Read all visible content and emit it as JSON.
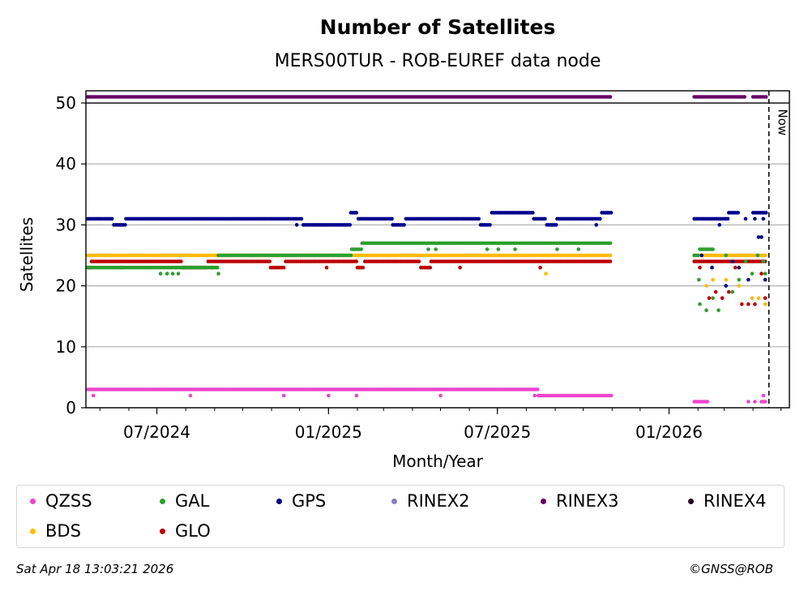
{
  "chart_data": {
    "type": "scatter",
    "title": "Number of Satellites",
    "subtitle": "MERS00TUR - ROB-EUREF data node",
    "xlabel": "Month/Year",
    "ylabel": "Satellites",
    "xlim": [
      "2024-04-16",
      "2026-05-10"
    ],
    "ylim": [
      0,
      52
    ],
    "yticks": [
      0,
      10,
      20,
      30,
      40,
      50
    ],
    "xticks": [
      {
        "date": "2024-07-01",
        "label": "07/2024"
      },
      {
        "date": "2025-01-01",
        "label": "01/2025"
      },
      {
        "date": "2025-07-01",
        "label": "07/2025"
      },
      {
        "date": "2026-01-01",
        "label": "01/2026"
      }
    ],
    "grid": "horizontal",
    "now_marker": {
      "date": "2026-04-18",
      "label": "Now"
    },
    "legend_placement": "bottom",
    "series": [
      {
        "name": "QZSS",
        "color": "#ee44cc",
        "segments": [
          {
            "start": "2024-04-18",
            "end": "2025-08-13",
            "value": 3
          },
          {
            "start": "2025-08-14",
            "end": "2025-10-31",
            "value": 2
          },
          {
            "start": "2026-01-28",
            "end": "2026-02-12",
            "value": 1
          },
          {
            "start": "2026-04-10",
            "end": "2026-04-15",
            "value": 1
          }
        ],
        "points": [
          [
            "2024-04-24",
            2
          ],
          [
            "2024-08-06",
            2
          ],
          [
            "2024-11-14",
            2
          ],
          [
            "2025-01-01",
            2
          ],
          [
            "2025-01-31",
            2
          ],
          [
            "2025-05-01",
            2
          ],
          [
            "2025-08-10",
            2
          ],
          [
            "2026-03-27",
            1
          ],
          [
            "2026-04-03",
            1
          ],
          [
            "2026-04-12",
            2
          ]
        ]
      },
      {
        "name": "GAL",
        "color": "#2ca02c",
        "segments": [
          {
            "start": "2024-04-18",
            "end": "2024-07-31",
            "value": 23
          },
          {
            "start": "2024-08-01",
            "end": "2024-09-04",
            "value": 23
          },
          {
            "start": "2024-09-05",
            "end": "2025-01-25",
            "value": 25
          },
          {
            "start": "2025-01-26",
            "end": "2025-02-05",
            "value": 26
          },
          {
            "start": "2025-02-06",
            "end": "2025-07-20",
            "value": 27
          },
          {
            "start": "2025-07-22",
            "end": "2025-10-31",
            "value": 27
          },
          {
            "start": "2026-01-28",
            "end": "2026-02-02",
            "value": 25
          },
          {
            "start": "2026-02-03",
            "end": "2026-02-18",
            "value": 26
          }
        ],
        "points": [
          [
            "2024-07-05",
            22
          ],
          [
            "2024-07-12",
            22
          ],
          [
            "2024-07-18",
            22
          ],
          [
            "2024-07-24",
            22
          ],
          [
            "2024-09-05",
            22
          ],
          [
            "2025-04-18",
            26
          ],
          [
            "2025-04-26",
            26
          ],
          [
            "2025-06-20",
            26
          ],
          [
            "2025-07-02",
            26
          ],
          [
            "2025-07-20",
            26
          ],
          [
            "2025-09-03",
            26
          ],
          [
            "2025-09-26",
            26
          ],
          [
            "2026-02-02",
            21
          ],
          [
            "2026-02-03",
            17
          ],
          [
            "2026-02-10",
            16
          ],
          [
            "2026-02-17",
            18
          ],
          [
            "2026-02-23",
            16
          ],
          [
            "2026-03-03",
            25
          ],
          [
            "2026-03-10",
            19
          ],
          [
            "2026-03-17",
            21
          ],
          [
            "2026-03-24",
            24
          ],
          [
            "2026-03-31",
            22
          ],
          [
            "2026-04-06",
            25
          ],
          [
            "2026-04-12",
            24
          ],
          [
            "2026-04-14",
            22
          ]
        ]
      },
      {
        "name": "GPS",
        "color": "#00008b",
        "segments": [
          {
            "start": "2024-04-18",
            "end": "2024-05-15",
            "value": 31
          },
          {
            "start": "2024-05-16",
            "end": "2024-05-28",
            "value": 30
          },
          {
            "start": "2024-05-29",
            "end": "2024-12-04",
            "value": 31
          },
          {
            "start": "2024-12-05",
            "end": "2025-01-24",
            "value": 30
          },
          {
            "start": "2025-01-25",
            "end": "2025-02-01",
            "value": 32
          },
          {
            "start": "2025-02-02",
            "end": "2025-03-10",
            "value": 31
          },
          {
            "start": "2025-03-11",
            "end": "2025-03-24",
            "value": 30
          },
          {
            "start": "2025-03-25",
            "end": "2025-06-12",
            "value": 31
          },
          {
            "start": "2025-06-13",
            "end": "2025-06-24",
            "value": 30
          },
          {
            "start": "2025-06-25",
            "end": "2025-08-08",
            "value": 32
          },
          {
            "start": "2025-08-09",
            "end": "2025-08-22",
            "value": 31
          },
          {
            "start": "2025-08-23",
            "end": "2025-09-02",
            "value": 30
          },
          {
            "start": "2025-09-03",
            "end": "2025-10-20",
            "value": 31
          },
          {
            "start": "2025-10-21",
            "end": "2025-10-31",
            "value": 32
          },
          {
            "start": "2026-01-28",
            "end": "2026-03-05",
            "value": 31
          },
          {
            "start": "2026-03-06",
            "end": "2026-03-16",
            "value": 32
          },
          {
            "start": "2026-04-01",
            "end": "2026-04-15",
            "value": 32
          }
        ],
        "points": [
          [
            "2024-11-28",
            30
          ],
          [
            "2025-10-15",
            30
          ],
          [
            "2026-02-05",
            25
          ],
          [
            "2026-02-16",
            23
          ],
          [
            "2026-02-24",
            30
          ],
          [
            "2026-03-03",
            20
          ],
          [
            "2026-03-10",
            24
          ],
          [
            "2026-03-17",
            23
          ],
          [
            "2026-03-24",
            31
          ],
          [
            "2026-03-27",
            21
          ],
          [
            "2026-04-03",
            31
          ],
          [
            "2026-04-07",
            28
          ],
          [
            "2026-04-10",
            28
          ],
          [
            "2026-04-12",
            31
          ],
          [
            "2026-04-14",
            21
          ]
        ]
      },
      {
        "name": "RINEX2",
        "color": "#8080c0",
        "segments": [],
        "points": []
      },
      {
        "name": "RINEX3",
        "color": "#660066",
        "segments": [
          {
            "start": "2024-04-18",
            "end": "2025-10-31",
            "value": 51
          },
          {
            "start": "2026-01-28",
            "end": "2026-03-24",
            "value": 51
          },
          {
            "start": "2026-04-01",
            "end": "2026-04-15",
            "value": 51
          }
        ],
        "points": []
      },
      {
        "name": "RINEX4",
        "color": "#220022",
        "segments": [],
        "points": []
      },
      {
        "name": "BDS",
        "color": "#ffbb00",
        "segments": [
          {
            "start": "2024-04-18",
            "end": "2025-10-31",
            "value": 25
          },
          {
            "start": "2026-01-28",
            "end": "2026-04-15",
            "value": 25
          }
        ],
        "points": [
          [
            "2025-08-22",
            22
          ],
          [
            "2026-02-10",
            20
          ],
          [
            "2026-02-17",
            21
          ],
          [
            "2026-03-03",
            21
          ],
          [
            "2026-03-17",
            20
          ],
          [
            "2026-03-31",
            18
          ],
          [
            "2026-04-07",
            18
          ],
          [
            "2026-04-14",
            17
          ]
        ]
      },
      {
        "name": "GLO",
        "color": "#bb0000",
        "segments": [
          {
            "start": "2024-04-18",
            "end": "2024-04-21",
            "value": 23
          },
          {
            "start": "2024-04-22",
            "end": "2024-07-27",
            "value": 24
          },
          {
            "start": "2024-07-28",
            "end": "2024-08-24",
            "value": 23
          },
          {
            "start": "2024-08-25",
            "end": "2024-10-30",
            "value": 24
          },
          {
            "start": "2024-10-31",
            "end": "2024-11-15",
            "value": 23
          },
          {
            "start": "2024-11-16",
            "end": "2025-01-31",
            "value": 24
          },
          {
            "start": "2025-02-01",
            "end": "2025-02-08",
            "value": 23
          },
          {
            "start": "2025-02-09",
            "end": "2025-04-09",
            "value": 24
          },
          {
            "start": "2025-04-10",
            "end": "2025-04-20",
            "value": 23
          },
          {
            "start": "2025-04-21",
            "end": "2025-10-31",
            "value": 24
          },
          {
            "start": "2026-01-28",
            "end": "2026-04-15",
            "value": 24
          }
        ],
        "points": [
          [
            "2024-05-24",
            23
          ],
          [
            "2024-08-29",
            23
          ],
          [
            "2024-12-30",
            23
          ],
          [
            "2025-05-22",
            23
          ],
          [
            "2025-08-16",
            23
          ],
          [
            "2026-02-03",
            23
          ],
          [
            "2026-02-13",
            18
          ],
          [
            "2026-02-20",
            19
          ],
          [
            "2026-02-27",
            18
          ],
          [
            "2026-03-06",
            19
          ],
          [
            "2026-03-13",
            23
          ],
          [
            "2026-03-20",
            17
          ],
          [
            "2026-03-27",
            17
          ],
          [
            "2026-04-03",
            17
          ],
          [
            "2026-04-10",
            22
          ],
          [
            "2026-04-14",
            18
          ]
        ]
      }
    ]
  },
  "legend": [
    {
      "label": "QZSS",
      "color": "#ee44cc"
    },
    {
      "label": "GAL",
      "color": "#2ca02c"
    },
    {
      "label": "GPS",
      "color": "#00008b"
    },
    {
      "label": "RINEX2",
      "color": "#8080c0"
    },
    {
      "label": "RINEX3",
      "color": "#660066"
    },
    {
      "label": "RINEX4",
      "color": "#220022"
    },
    {
      "label": "BDS",
      "color": "#ffbb00"
    },
    {
      "label": "GLO",
      "color": "#bb0000"
    }
  ],
  "footer": {
    "timestamp": "Sat Apr 18 13:03:21 2026",
    "credit": "©GNSS@ROB"
  }
}
